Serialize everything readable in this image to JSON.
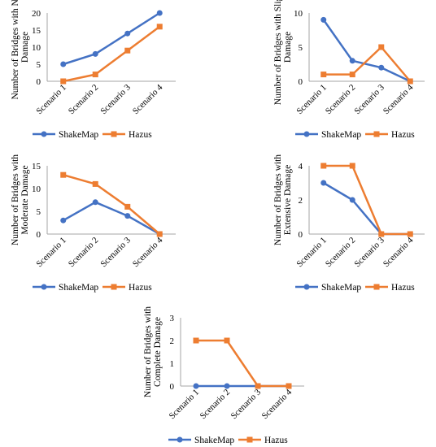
{
  "colors": {
    "ShakeMap": "#4472C4",
    "Hazus": "#ED7D31",
    "axis": "#A6A6A6",
    "text": "#000000"
  },
  "chart_data": [
    {
      "type": "line",
      "categories": [
        "Scenario 1",
        "Scenario 2",
        "Scenario 3",
        "Scenario 4"
      ],
      "ylabel": [
        "Number of Bridges with No",
        "Damage"
      ],
      "yticks": [
        0,
        5,
        10,
        15,
        20
      ],
      "ylim": [
        0,
        20
      ],
      "grid": false,
      "legend": "bottom",
      "series": [
        {
          "name": "ShakeMap",
          "values": [
            5,
            8,
            14,
            20
          ]
        },
        {
          "name": "Hazus",
          "values": [
            0,
            2,
            9,
            16
          ]
        }
      ]
    },
    {
      "type": "line",
      "categories": [
        "Scenario 1",
        "Scenario 2",
        "Scenario 3",
        "Scenario 4"
      ],
      "ylabel": [
        "Number of Bridges with Slight",
        "Damage"
      ],
      "yticks": [
        0,
        5,
        10
      ],
      "ylim": [
        0,
        10
      ],
      "grid": false,
      "legend": "bottom",
      "series": [
        {
          "name": "ShakeMap",
          "values": [
            9,
            3,
            2,
            0
          ]
        },
        {
          "name": "Hazus",
          "values": [
            1,
            1,
            5,
            0
          ]
        }
      ]
    },
    {
      "type": "line",
      "categories": [
        "Scenario 1",
        "Scenario 2",
        "Scenario 3",
        "Scenario 4"
      ],
      "ylabel": [
        "Number of Bridges with",
        "Moderate Damage"
      ],
      "yticks": [
        0,
        5,
        10,
        15
      ],
      "ylim": [
        0,
        15
      ],
      "grid": false,
      "legend": "bottom",
      "series": [
        {
          "name": "ShakeMap",
          "values": [
            3,
            7,
            4,
            0
          ]
        },
        {
          "name": "Hazus",
          "values": [
            13,
            11,
            6,
            0
          ]
        }
      ]
    },
    {
      "type": "line",
      "categories": [
        "Scenario 1",
        "Scenario 2",
        "Scenario 3",
        "Scenario 4"
      ],
      "ylabel": [
        "Number of Bridges with",
        "Extensive Damage"
      ],
      "yticks": [
        0,
        2,
        4
      ],
      "ylim": [
        0,
        4
      ],
      "grid": false,
      "legend": "bottom",
      "series": [
        {
          "name": "ShakeMap",
          "values": [
            3,
            2,
            0,
            0
          ]
        },
        {
          "name": "Hazus",
          "values": [
            4,
            4,
            0,
            0
          ]
        }
      ]
    },
    {
      "type": "line",
      "categories": [
        "Scenario 1",
        "Scenario 2",
        "Scenario 3",
        "Scenario 4"
      ],
      "ylabel": [
        "Number of Bridges with",
        "Complete Damage"
      ],
      "yticks": [
        0,
        1,
        2,
        3
      ],
      "ylim": [
        0,
        3
      ],
      "grid": false,
      "legend": "bottom",
      "series": [
        {
          "name": "ShakeMap",
          "values": [
            0,
            0,
            0,
            0
          ]
        },
        {
          "name": "Hazus",
          "values": [
            2,
            2,
            0,
            0
          ]
        }
      ]
    }
  ]
}
